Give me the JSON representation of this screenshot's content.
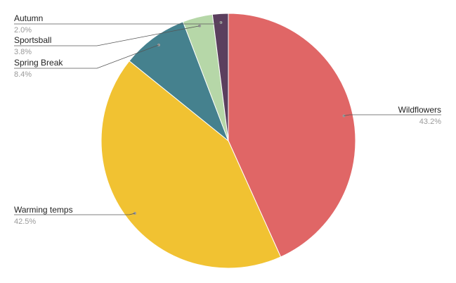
{
  "chart_data": {
    "type": "pie",
    "slices": [
      {
        "label": "Wildflowers",
        "percent_label": "43.2%",
        "value": 43.2,
        "color": "#e06666"
      },
      {
        "label": "Warming temps",
        "percent_label": "42.5%",
        "value": 42.5,
        "color": "#f1c232"
      },
      {
        "label": "Spring Break",
        "percent_label": "8.4%",
        "value": 8.4,
        "color": "#45818e"
      },
      {
        "label": "Sportsball",
        "percent_label": "3.8%",
        "value": 3.8,
        "color": "#b6d7a8"
      },
      {
        "label": "Autumn",
        "percent_label": "2.0%",
        "value": 2.0,
        "color": "#5b3f5e"
      }
    ],
    "start_angle": "12 o'clock",
    "direction": "clockwise",
    "label_style": "leader lines"
  }
}
